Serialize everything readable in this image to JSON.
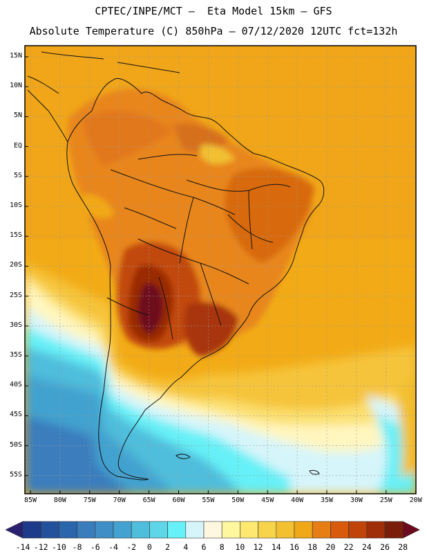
{
  "header": {
    "line1": "CPTEC/INPE/MCT –  Eta Model 15km – GFS",
    "line2": "Absolute Temperature (C) 850hPa – 07/12/2020 12UTC fct=132h"
  },
  "axes": {
    "lat_labels": [
      "15N",
      "10N",
      "5N",
      "EQ",
      "5S",
      "10S",
      "15S",
      "20S",
      "25S",
      "30S",
      "35S",
      "40S",
      "45S",
      "50S",
      "55S"
    ],
    "lon_labels": [
      "85W",
      "80W",
      "75W",
      "70W",
      "65W",
      "60W",
      "55W",
      "50W",
      "45W",
      "40W",
      "35W",
      "30W",
      "25W",
      "20W"
    ]
  },
  "colorbar": {
    "labels": [
      "-14",
      "-12",
      "-10",
      "-8",
      "-6",
      "-4",
      "-2",
      "0",
      "2",
      "4",
      "6",
      "8",
      "10",
      "12",
      "14",
      "16",
      "18",
      "20",
      "22",
      "24",
      "26",
      "28"
    ],
    "colors": [
      "#1e3a8a",
      "#24519c",
      "#2b66ac",
      "#3a7dbd",
      "#3f8fc6",
      "#43a2cf",
      "#4fbddc",
      "#5ed6e8",
      "#66f0f7",
      "#d6f5fa",
      "#fff7e0",
      "#fff6a0",
      "#ffe870",
      "#f8d44a",
      "#f2c030",
      "#f0a818",
      "#e67e14",
      "#d85a0c",
      "#c0440a",
      "#a02e08",
      "#7a1e0a"
    ],
    "under_color": "#2a2070",
    "over_color": "#6e0a1e"
  }
}
